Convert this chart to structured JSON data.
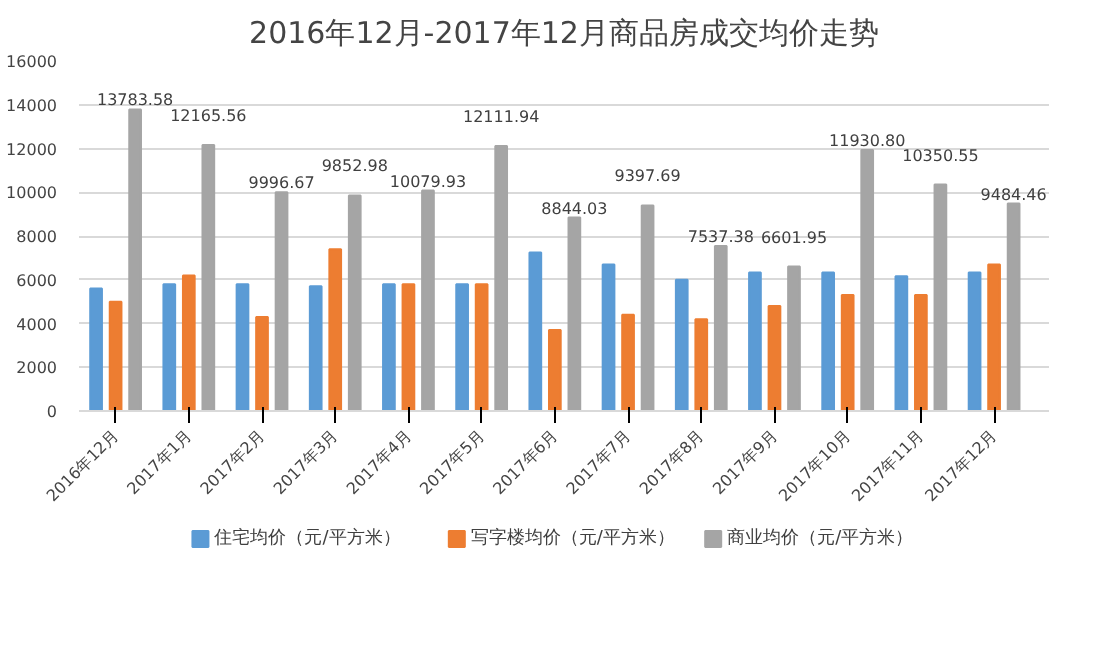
{
  "chart_data": {
    "type": "bar",
    "title": "2016年12月-2017年12月商品房成交均价走势",
    "categories": [
      "2016年12月",
      "2017年1月",
      "2017年2月",
      "2017年3月",
      "2017年4月",
      "2017年5月",
      "2017年6月",
      "2017年7月",
      "2017年8月",
      "2017年9月",
      "2017年10月",
      "2017年11月",
      "2017年12月"
    ],
    "series": [
      {
        "name": "住宅均价（元/平方米）",
        "color": "#5b9bd5",
        "values": [
          5600,
          5800,
          5800,
          5700,
          5800,
          5800,
          7250,
          6700,
          6000,
          6330,
          6330,
          6160,
          6330
        ]
      },
      {
        "name": "写字楼均价（元/平方米）",
        "color": "#ed7d31",
        "values": [
          5000,
          6200,
          4300,
          7400,
          5800,
          5800,
          3700,
          4400,
          4200,
          4800,
          5300,
          5300,
          6700
        ]
      },
      {
        "name": "商业均价（元/平方米）",
        "color": "#a5a5a5",
        "values": [
          13783.58,
          12165.56,
          9996.67,
          9852.98,
          10079.93,
          12111.94,
          8844.03,
          9397.69,
          7537.38,
          6601.95,
          11930.8,
          10350.55,
          9484.46
        ],
        "value_labels": [
          "13783.58",
          "12165.56",
          "9996.67",
          "9852.98",
          "10079.93",
          "12111.94",
          "8844.03",
          "9397.69",
          "7537.38",
          "6601.95",
          "11930.80",
          "10350.55",
          "9484.46"
        ]
      }
    ],
    "ylim": [
      0,
      16000
    ],
    "yticks": [
      0,
      2000,
      4000,
      6000,
      8000,
      10000,
      12000,
      14000,
      16000
    ],
    "grid": "y",
    "legend": "bottom"
  }
}
